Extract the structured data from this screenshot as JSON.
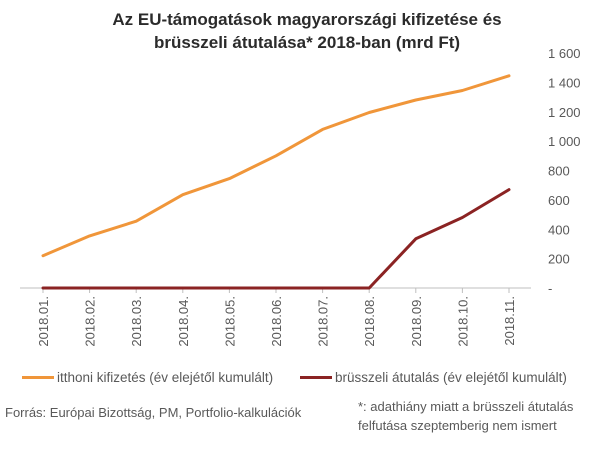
{
  "chart_data": {
    "type": "line",
    "title_line1": "Az EU-támogatások magyarországi kifizetése és",
    "title_line2": "brüsszeli átutalása* 2018-ban (mrd Ft)",
    "categories": [
      "2018.01.",
      "2018.02.",
      "2018.03.",
      "2018.04.",
      "2018.05.",
      "2018.06.",
      "2018.07.",
      "2018.08.",
      "2018.09.",
      "2018.10.",
      "2018.11."
    ],
    "series": [
      {
        "name": "itthoni kifizetés (év elejétől kumulált)",
        "color": "#f0963a",
        "values": [
          220,
          355,
          455,
          635,
          745,
          900,
          1080,
          1195,
          1280,
          1345,
          1445
        ]
      },
      {
        "name": "brüsszeli átutalás (év elejétől kumulált)",
        "color": "#8b2323",
        "values": [
          0,
          0,
          0,
          0,
          0,
          0,
          0,
          0,
          335,
          480,
          670
        ]
      }
    ],
    "ylim": [
      0,
      1600
    ],
    "yticks": [
      {
        "value": 0,
        "label": "-"
      },
      {
        "value": 200,
        "label": "200"
      },
      {
        "value": 400,
        "label": "400"
      },
      {
        "value": 600,
        "label": "600"
      },
      {
        "value": 800,
        "label": "800"
      },
      {
        "value": 1000,
        "label": "1 000"
      },
      {
        "value": 1200,
        "label": "1 200"
      },
      {
        "value": 1400,
        "label": "1 400"
      },
      {
        "value": 1600,
        "label": "1 600"
      }
    ],
    "y_axis_side": "right",
    "grid": false,
    "legend_position": "bottom"
  },
  "source": "Forrás: Európai Bizottság, PM, Portfolio-kalkulációk",
  "note_line1": "*: adathiány miatt a brüsszeli átutalás",
  "note_line2": "felfutása szeptemberig nem ismert"
}
